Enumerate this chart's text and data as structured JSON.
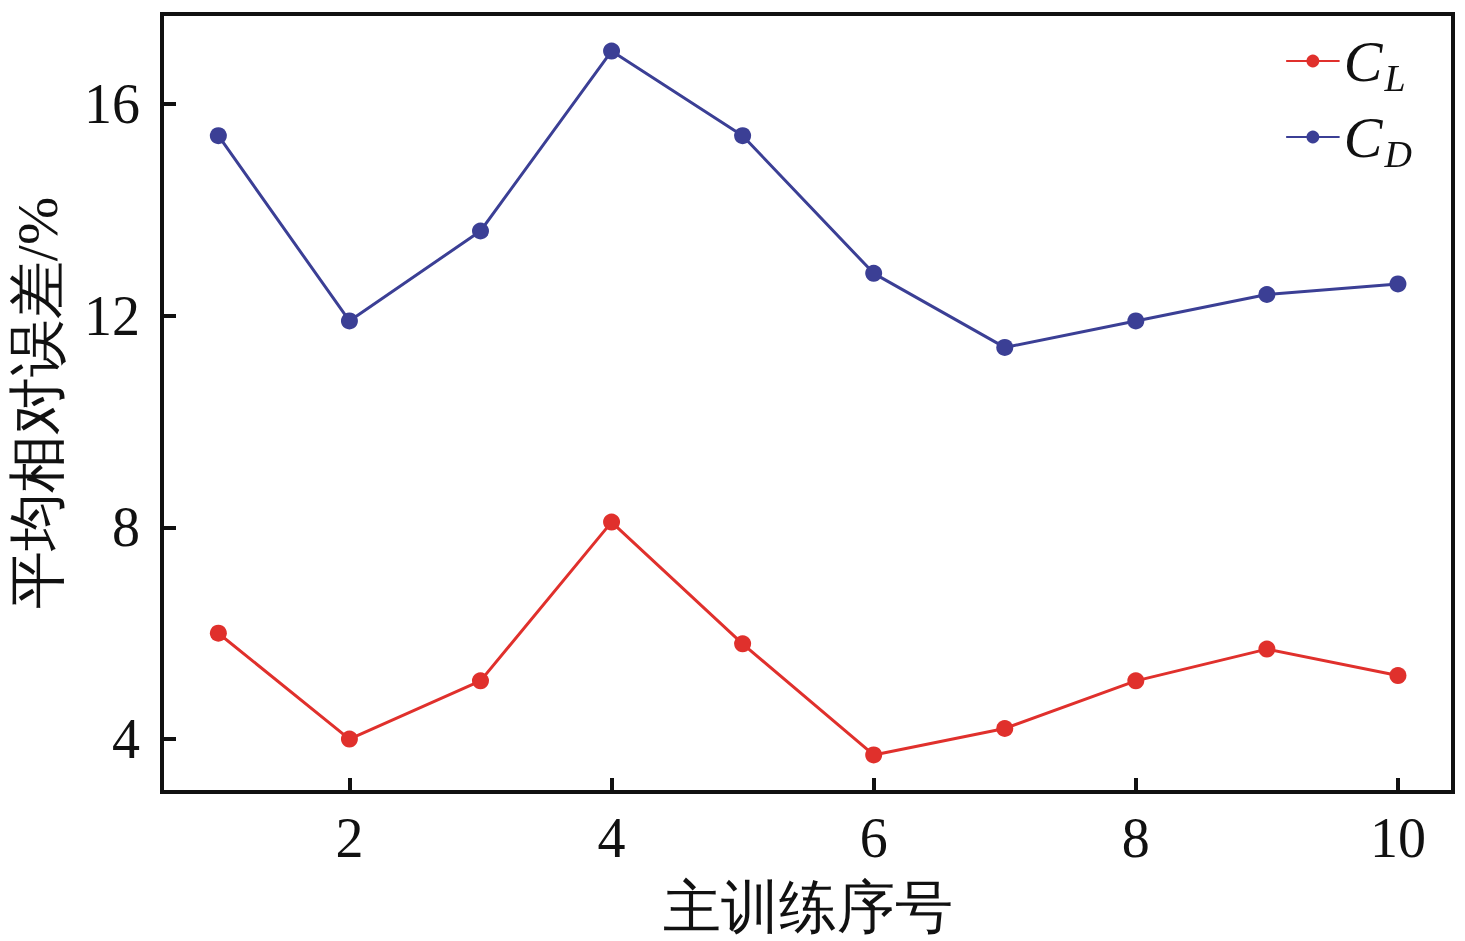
{
  "chart_data": {
    "type": "line",
    "xlabel": "主训练序号",
    "ylabel": "平均相对误差/%",
    "x": [
      1,
      2,
      3,
      4,
      5,
      6,
      7,
      8,
      9,
      10
    ],
    "series": [
      {
        "name": "C$_{L}$",
        "color": "#e0302c",
        "values": [
          6.0,
          4.0,
          5.1,
          8.1,
          5.8,
          3.7,
          4.2,
          5.1,
          5.7,
          5.2
        ]
      },
      {
        "name": "C$_{D}$",
        "color": "#3b3f95",
        "values": [
          15.4,
          11.9,
          13.6,
          17.0,
          15.4,
          12.8,
          11.4,
          11.9,
          12.4,
          12.6
        ]
      }
    ],
    "xlim": [
      0.57,
      10.42
    ],
    "xticks": [
      2,
      4,
      6,
      8,
      10
    ],
    "ylim": [
      3,
      17.7
    ],
    "yticks": [
      4,
      8,
      12,
      16
    ],
    "grid": false,
    "legend": "top right",
    "marker": "circle",
    "line_style": "solid"
  }
}
